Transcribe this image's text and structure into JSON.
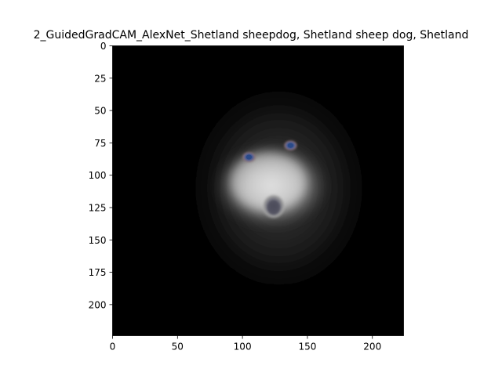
{
  "chart_data": {
    "type": "heatmap",
    "title": "2_GuidedGradCAM_AlexNet_Shetland sheepdog, Shetland sheep dog, Shetland",
    "xlabel": "",
    "ylabel": "",
    "image_size": [
      224,
      224
    ],
    "xlim": [
      0,
      224
    ],
    "ylim": [
      224,
      0
    ],
    "x_ticks": [
      0,
      50,
      100,
      150,
      200
    ],
    "y_ticks": [
      0,
      25,
      50,
      75,
      100,
      125,
      150,
      175,
      200
    ],
    "grid": false,
    "content": "Guided Grad-CAM saliency visualization on black background; brightest region centered around the dog's face (eyes near x=105 and x=137, y=85 and y=77; nose near x=124, y=124)",
    "colors": {
      "background": "#000000",
      "highlight": "#e6e6e6",
      "eye_tint": "#2a4a88"
    }
  }
}
